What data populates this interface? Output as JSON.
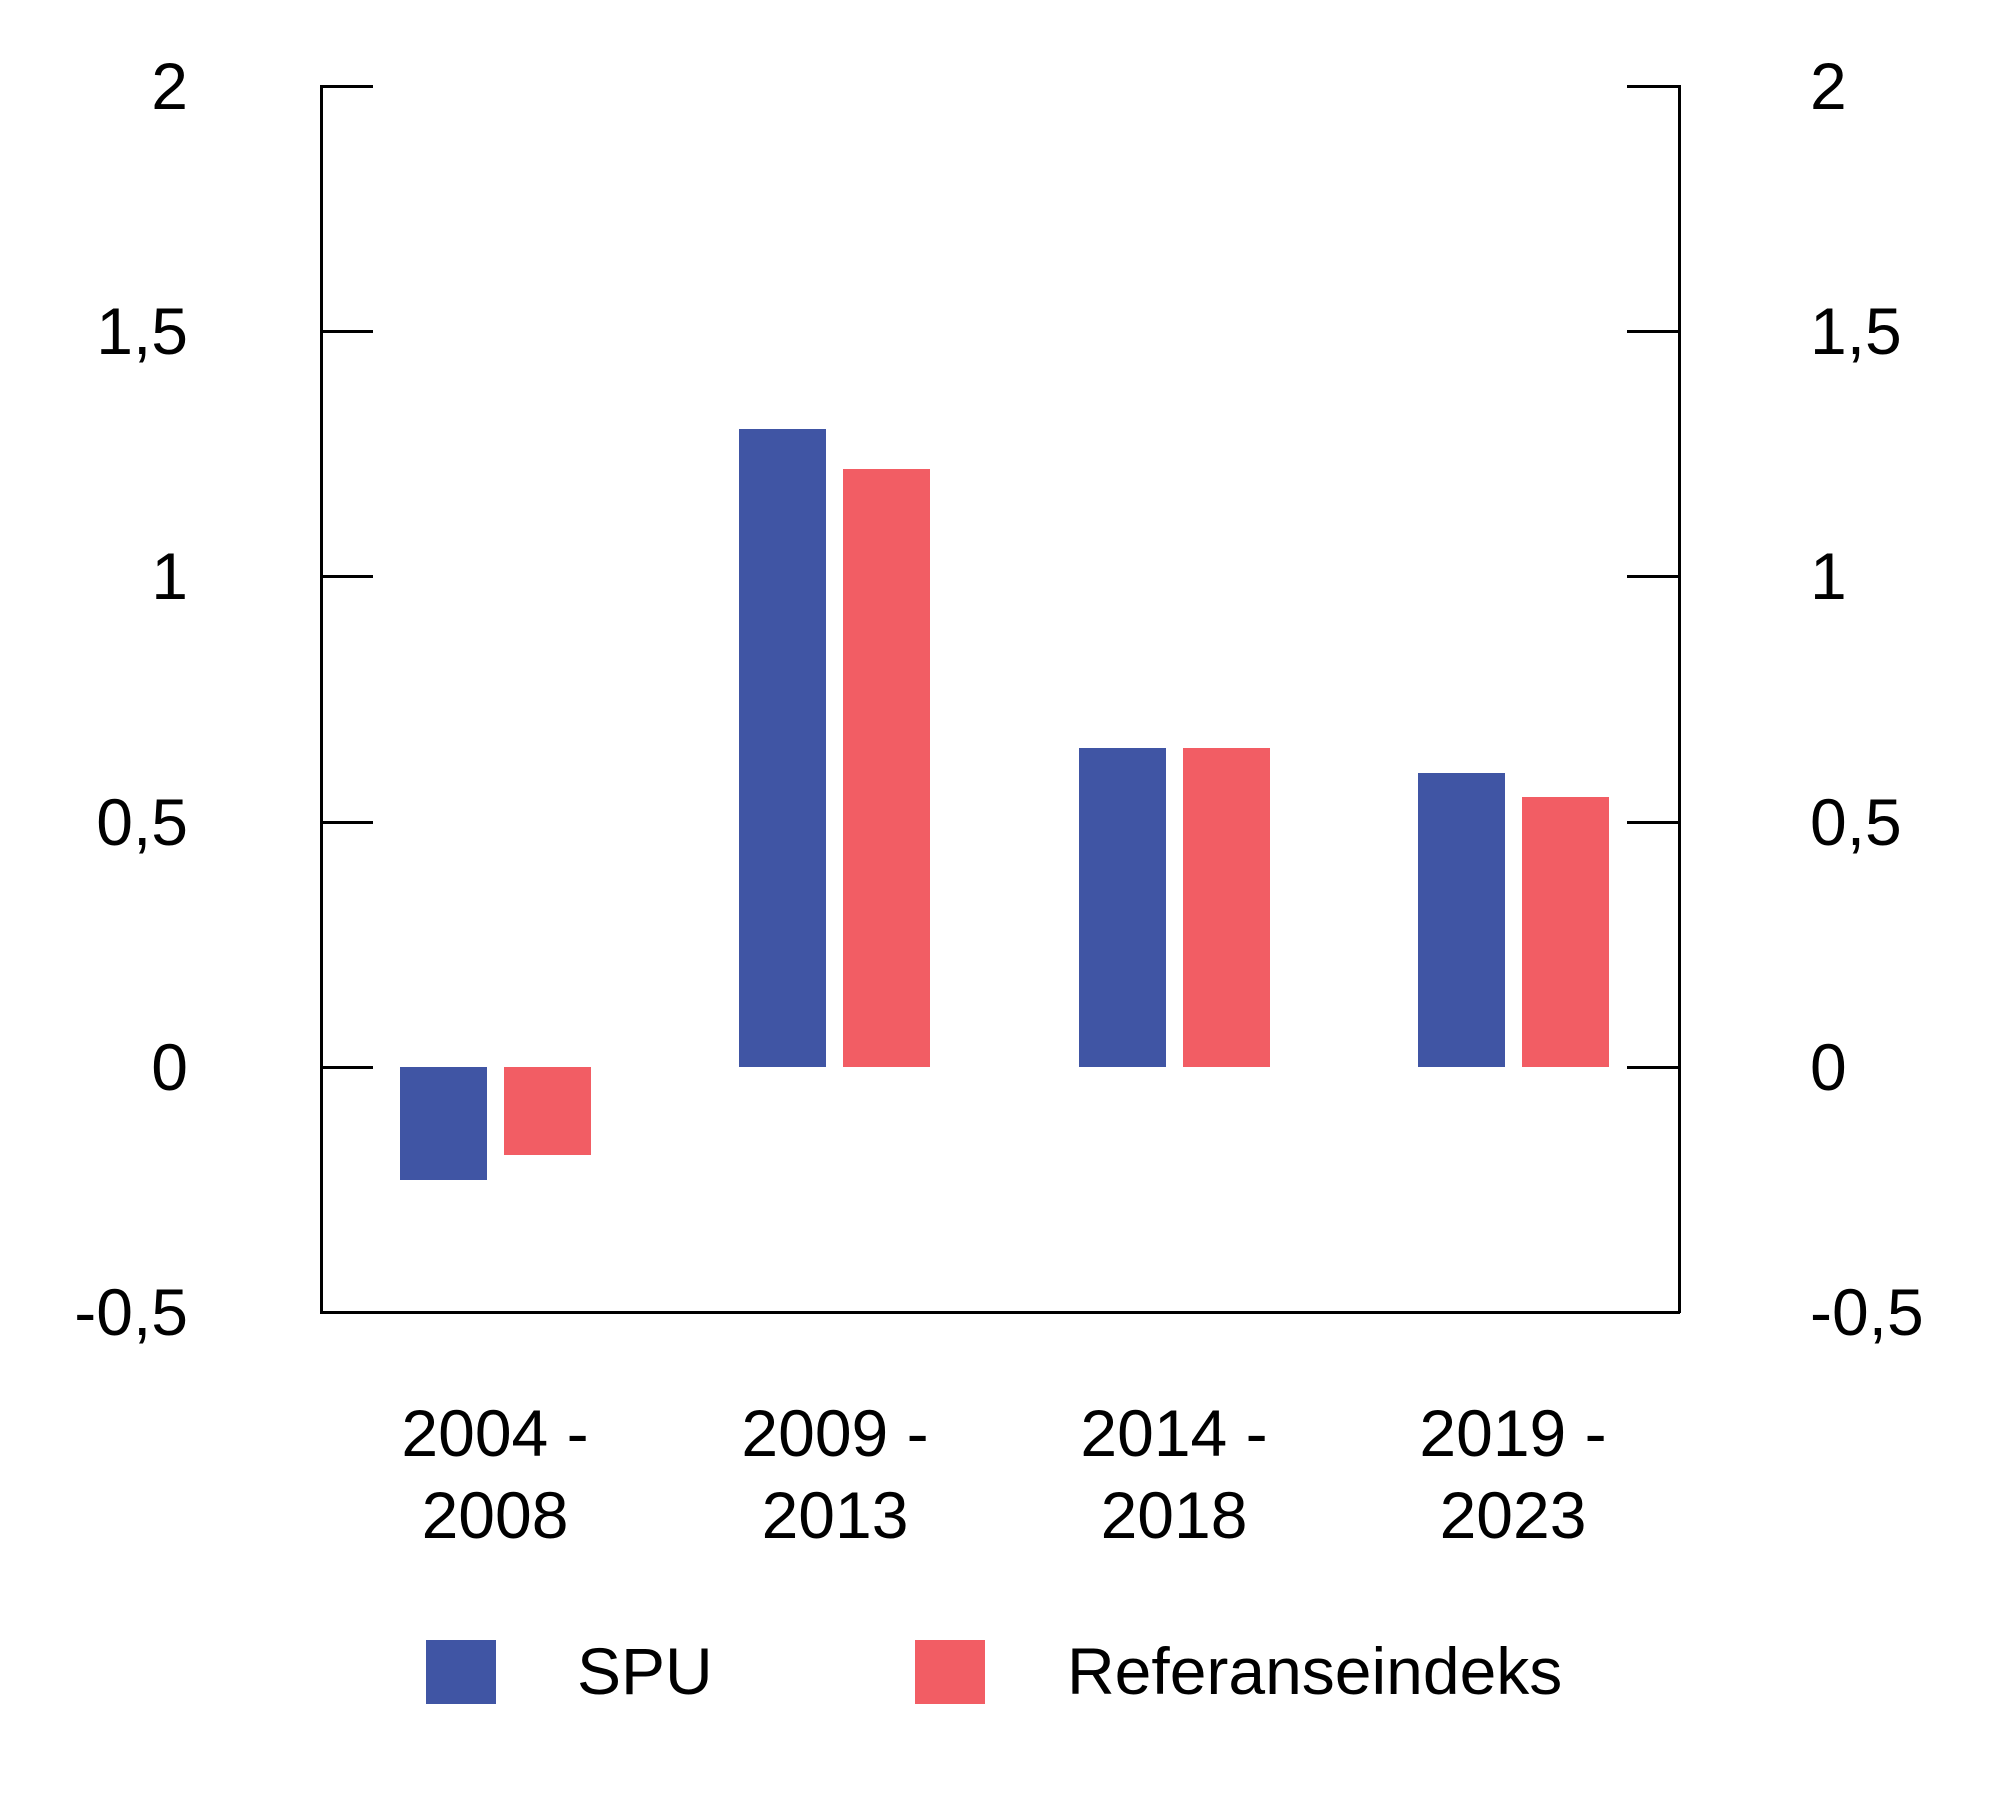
{
  "chart_data": {
    "type": "bar",
    "title": "",
    "xlabel": "",
    "ylabel": "",
    "categories": [
      {
        "line1": "2004 -",
        "line2": "2008"
      },
      {
        "line1": "2009 -",
        "line2": "2013"
      },
      {
        "line1": "2014 -",
        "line2": "2018"
      },
      {
        "line1": "2019 -",
        "line2": "2023"
      }
    ],
    "series": [
      {
        "name": "SPU",
        "color": "#4055A4",
        "values": [
          -0.23,
          1.3,
          0.65,
          0.6
        ]
      },
      {
        "name": "Referanseindeks",
        "color": "#F25D64",
        "values": [
          -0.18,
          1.22,
          0.65,
          0.55
        ]
      }
    ],
    "ylim": [
      -0.5,
      2
    ],
    "y_ticks": [
      {
        "value": 2,
        "label": "2"
      },
      {
        "value": 1.5,
        "label": "1,5"
      },
      {
        "value": 1,
        "label": "1"
      },
      {
        "value": 0.5,
        "label": "0,5"
      },
      {
        "value": 0,
        "label": "0"
      },
      {
        "value": -0.5,
        "label": "-0,5"
      }
    ],
    "grid": false,
    "dual_y_axis_labels": true,
    "legend_position": "bottom",
    "axis_color": "#000000",
    "background_color": "#ffffff"
  }
}
